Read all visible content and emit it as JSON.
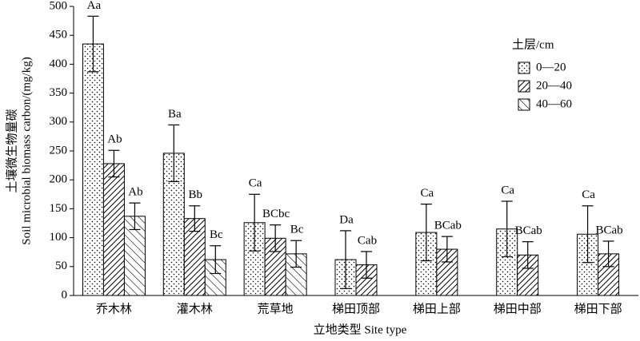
{
  "chart_data": {
    "type": "bar",
    "ylabel": [
      "土壤微生物量碳",
      "Soil microbial biomass carbon/(mg/kg)"
    ],
    "xlabel": "立地类型 Site type",
    "legend_title": "土层/cm",
    "legend": "upper right",
    "categories": [
      "乔木林",
      "灌木林",
      "荒草地",
      "梯田顶部",
      "梯田上部",
      "梯田中部",
      "梯田下部"
    ],
    "series": [
      {
        "name": "0—20",
        "color": "#ffffff",
        "pattern": "dots",
        "values": [
          435,
          246,
          126,
          62,
          109,
          115,
          106
        ],
        "errors": [
          48,
          49,
          49,
          50,
          49,
          48,
          49
        ],
        "letters": [
          "Aa",
          "Ba",
          "Ca",
          "Da",
          "Ca",
          "Ca",
          "Ca"
        ]
      },
      {
        "name": "20—40",
        "color": "#ffffff",
        "pattern": "hatch",
        "values": [
          228,
          133,
          99,
          53,
          80,
          70,
          72
        ],
        "errors": [
          23,
          22,
          23,
          23,
          22,
          23,
          22
        ],
        "letters": [
          "Ab",
          "Bb",
          "BCbc",
          "Cab",
          "BCab",
          "BCab",
          "BCab"
        ]
      },
      {
        "name": "40—60",
        "color": "#ffffff",
        "pattern": "backhatch",
        "values": [
          137,
          62,
          72,
          null,
          null,
          null,
          null
        ],
        "errors": [
          23,
          24,
          23,
          null,
          null,
          null,
          null
        ],
        "letters": [
          "Ab",
          "Bc",
          "Bc",
          null,
          null,
          null,
          null
        ]
      }
    ],
    "ylim": [
      0,
      500
    ],
    "yticks": [
      0,
      50,
      100,
      150,
      200,
      250,
      300,
      350,
      400,
      450,
      500
    ]
  }
}
